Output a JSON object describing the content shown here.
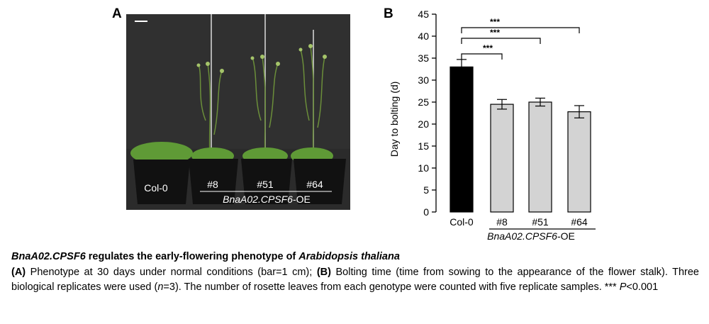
{
  "panel_a": {
    "label": "A",
    "pot_labels": [
      "Col-0",
      "#8",
      "#51",
      "#64"
    ],
    "group_label_italic": "BnaA02.CPSF6",
    "group_label_suffix": "-OE"
  },
  "panel_b": {
    "label": "B"
  },
  "chart_data": {
    "type": "bar",
    "categories": [
      "Col-0",
      "#8",
      "#51",
      "#64"
    ],
    "values": [
      33.0,
      24.5,
      25.0,
      22.8
    ],
    "errors": [
      1.7,
      1.1,
      0.9,
      1.4
    ],
    "colors": [
      "#000000",
      "#d3d3d3",
      "#d3d3d3",
      "#d3d3d3"
    ],
    "title": "",
    "xlabel": "",
    "ylabel": "Day to bolting (d)",
    "ylim": [
      0,
      45
    ],
    "yticks": [
      0,
      5,
      10,
      15,
      20,
      25,
      30,
      35,
      40,
      45
    ],
    "grid": false,
    "group_label_italic": "BnaA02.CPSF6",
    "group_label_suffix": "-OE",
    "significance": [
      {
        "from": "Col-0",
        "to": "#8",
        "label": "***"
      },
      {
        "from": "Col-0",
        "to": "#51",
        "label": "***"
      },
      {
        "from": "Col-0",
        "to": "#64",
        "label": "***"
      }
    ]
  },
  "caption": {
    "title_italic_1": "BnaA02.CPSF6",
    "title_mid": " regulates the early-flowering phenotype of ",
    "title_italic_2": "Arabidopsis thaliana",
    "a_label": "(A)",
    "a_text": " Phenotype at 30 days under normal conditions (bar=1 cm); ",
    "b_label": "(B)",
    "b_text_1": " Bolting time (time from sowing to the appearance of the flower stalk). Three biological replicates were used (",
    "n_italic": "n",
    "b_text_2": "=3). The number of rosette leaves from each genotype were counted with five replicate samples. *** ",
    "p_italic": "P",
    "b_text_3": "<0.001"
  }
}
